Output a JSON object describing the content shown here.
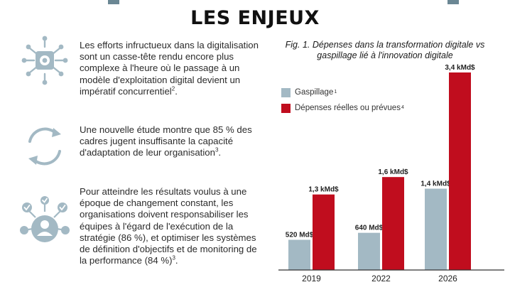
{
  "page": {
    "title": "LES ENJEUX",
    "accent_color": "#6b8794"
  },
  "blocks": [
    {
      "icon": "gear-circuit-icon",
      "text": "Les efforts infructueux dans la digitalisation sont un casse-tête rendu encore plus complexe à l'heure où le passage à un modèle d'exploitation digital devient un impératif concurrentiel",
      "footnote": "2",
      "suffix": "."
    },
    {
      "icon": "cycle-arrows-icon",
      "text": "Une nouvelle étude montre que 85 % des cadres jugent insuffisante la capacité d'adaptation de leur organisation",
      "footnote": "3",
      "suffix": "."
    },
    {
      "icon": "person-checkmarks-icon",
      "text": "Pour atteindre les résultats voulus à une époque de changement constant, les organisations doivent responsabiliser les équipes à l'égard de l'exécution de la stratégie (86 %), et optimiser les systèmes de définition d'objectifs et de monitoring de la performance (84 %)",
      "footnote": "3",
      "suffix": "."
    }
  ],
  "chart_data": {
    "type": "bar",
    "title": "Fig. 1. Dépenses dans la transformation digitale vs gaspillage lié à l'innovation digitale",
    "categories": [
      "2019",
      "2022",
      "2026"
    ],
    "series": [
      {
        "name": "Gaspillage",
        "footnote": "1",
        "color": "#a3b9c4",
        "values": [
          0.52,
          0.64,
          1.4
        ],
        "labels": [
          "520 Md$",
          "640 Md$",
          "1,4 kMd$"
        ]
      },
      {
        "name": "Dépenses réelles ou prévues",
        "footnote": "4",
        "color": "#c00d1e",
        "values": [
          1.3,
          1.6,
          3.4
        ],
        "labels": [
          "1,3 kMd$",
          "1,6 kMd$",
          "3,4 kMd$"
        ]
      }
    ],
    "unit": "kMd$",
    "ylim": [
      0,
      3.4
    ],
    "legend_position": "top-left",
    "grid": false
  }
}
